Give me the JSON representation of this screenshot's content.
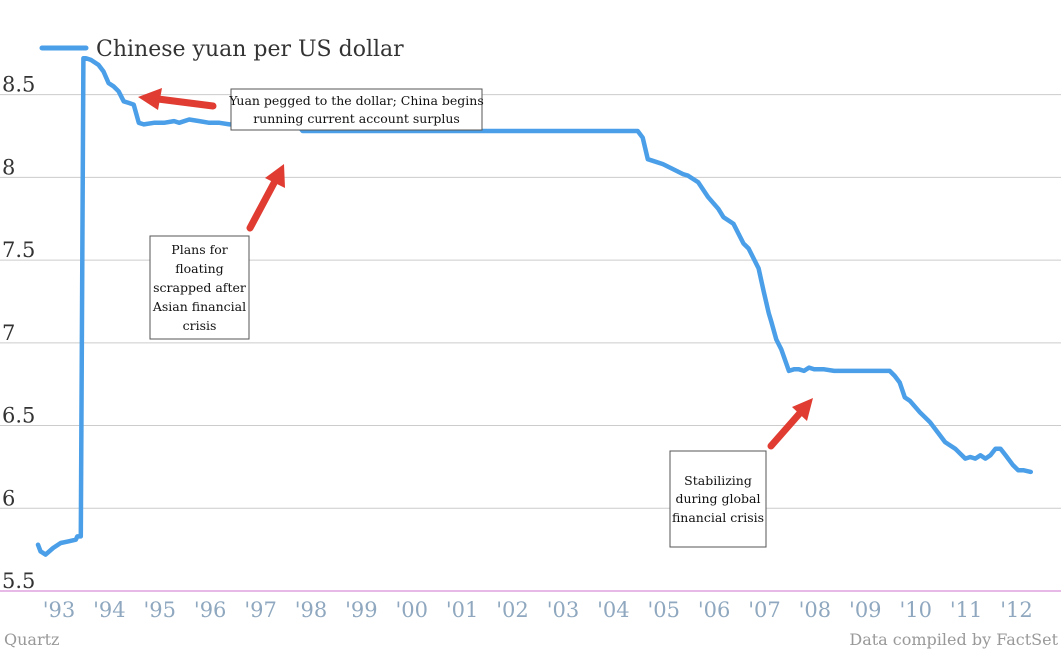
{
  "chart_data": {
    "type": "line",
    "legend": {
      "label": "Chinese yuan per US dollar",
      "placement": "top-left"
    },
    "colors": {
      "series": "#4a9fe8",
      "arrow": "#e03c31",
      "grid": "#cccccc",
      "baseline": "#d88fd8",
      "x_ticks": "#8fa8bf"
    },
    "grid": true,
    "x_ticks": [
      "'93",
      "'94",
      "'95",
      "'96",
      "'97",
      "'98",
      "'99",
      "'00",
      "'01",
      "'02",
      "'03",
      "'04",
      "'05",
      "'06",
      "'07",
      "'08",
      "'09",
      "'10",
      "'11",
      "'12"
    ],
    "x_tick_values": [
      1993,
      1994,
      1995,
      1996,
      1997,
      1998,
      1999,
      2000,
      2001,
      2002,
      2003,
      2004,
      2005,
      2006,
      2007,
      2008,
      2009,
      2010,
      2011,
      2012
    ],
    "xlim": [
      1993.0,
      2013.3
    ],
    "y_ticks": [
      "5.5",
      "6",
      "6.5",
      "7",
      "7.5",
      "8",
      "8.5"
    ],
    "y_tick_values": [
      5.5,
      6,
      6.5,
      7,
      7.5,
      8,
      8.5
    ],
    "ylim": [
      5.5,
      8.8
    ],
    "series": [
      {
        "name": "Chinese yuan per US dollar",
        "x": [
          1993.0,
          1993.05,
          1993.15,
          1993.3,
          1993.45,
          1993.6,
          1993.75,
          1993.78,
          1993.85,
          1993.9,
          1993.95,
          1994.05,
          1994.2,
          1994.3,
          1994.4,
          1994.5,
          1994.6,
          1994.7,
          1994.8,
          1994.9,
          1995.0,
          1995.1,
          1995.3,
          1995.5,
          1995.7,
          1995.8,
          1996.0,
          1996.2,
          1996.4,
          1996.6,
          1996.8,
          1997.0,
          1997.2,
          1997.4,
          1997.6,
          1997.8,
          1998.0,
          1998.2,
          1998.25,
          1999.0,
          2000.0,
          2001.0,
          2002.0,
          2003.0,
          2004.0,
          2004.5,
          2004.9,
          2005.0,
          2005.1,
          2005.2,
          2005.4,
          2005.6,
          2005.8,
          2005.9,
          2006.1,
          2006.3,
          2006.5,
          2006.6,
          2006.8,
          2007.0,
          2007.1,
          2007.3,
          2007.4,
          2007.5,
          2007.55,
          2007.65,
          2007.75,
          2007.9,
          2008.0,
          2008.1,
          2008.2,
          2008.3,
          2008.4,
          2008.5,
          2008.6,
          2008.8,
          2009.0,
          2009.5,
          2009.9,
          2010.0,
          2010.1,
          2010.2,
          2010.3,
          2010.5,
          2010.7,
          2010.9,
          2011.0,
          2011.2,
          2011.4,
          2011.5,
          2011.6,
          2011.7,
          2011.8,
          2011.9,
          2012.0,
          2012.1,
          2012.2,
          2012.35,
          2012.45,
          2012.55,
          2012.7
        ],
        "values": [
          5.78,
          5.74,
          5.72,
          5.76,
          5.79,
          5.8,
          5.81,
          5.83,
          5.83,
          8.72,
          8.72,
          8.71,
          8.68,
          8.64,
          8.57,
          8.55,
          8.52,
          8.46,
          8.45,
          8.44,
          8.33,
          8.32,
          8.33,
          8.33,
          8.34,
          8.33,
          8.35,
          8.34,
          8.33,
          8.33,
          8.32,
          8.32,
          8.31,
          8.3,
          8.3,
          8.3,
          8.3,
          8.3,
          8.28,
          8.28,
          8.28,
          8.28,
          8.28,
          8.28,
          8.28,
          8.28,
          8.28,
          8.24,
          8.11,
          8.1,
          8.08,
          8.05,
          8.02,
          8.01,
          7.97,
          7.88,
          7.81,
          7.76,
          7.72,
          7.6,
          7.57,
          7.45,
          7.31,
          7.18,
          7.13,
          7.02,
          6.96,
          6.83,
          6.84,
          6.84,
          6.83,
          6.85,
          6.84,
          6.84,
          6.84,
          6.83,
          6.83,
          6.83,
          6.83,
          6.8,
          6.76,
          6.67,
          6.65,
          6.58,
          6.52,
          6.44,
          6.4,
          6.36,
          6.3,
          6.31,
          6.3,
          6.32,
          6.3,
          6.32,
          6.36,
          6.36,
          6.32,
          6.26,
          6.23,
          6.23,
          6.22
        ]
      }
    ],
    "annotations": [
      {
        "lines": [
          "Yuan pegged to the dollar; China begins",
          "running current account surplus"
        ]
      },
      {
        "lines": [
          "Plans for",
          "floating",
          "scrapped after",
          "Asian financial",
          "crisis"
        ]
      },
      {
        "lines": [
          "Stabilizing",
          "during global",
          "financial crisis"
        ]
      }
    ]
  },
  "credits": {
    "left": "Quartz",
    "right": "Data compiled by FactSet"
  }
}
